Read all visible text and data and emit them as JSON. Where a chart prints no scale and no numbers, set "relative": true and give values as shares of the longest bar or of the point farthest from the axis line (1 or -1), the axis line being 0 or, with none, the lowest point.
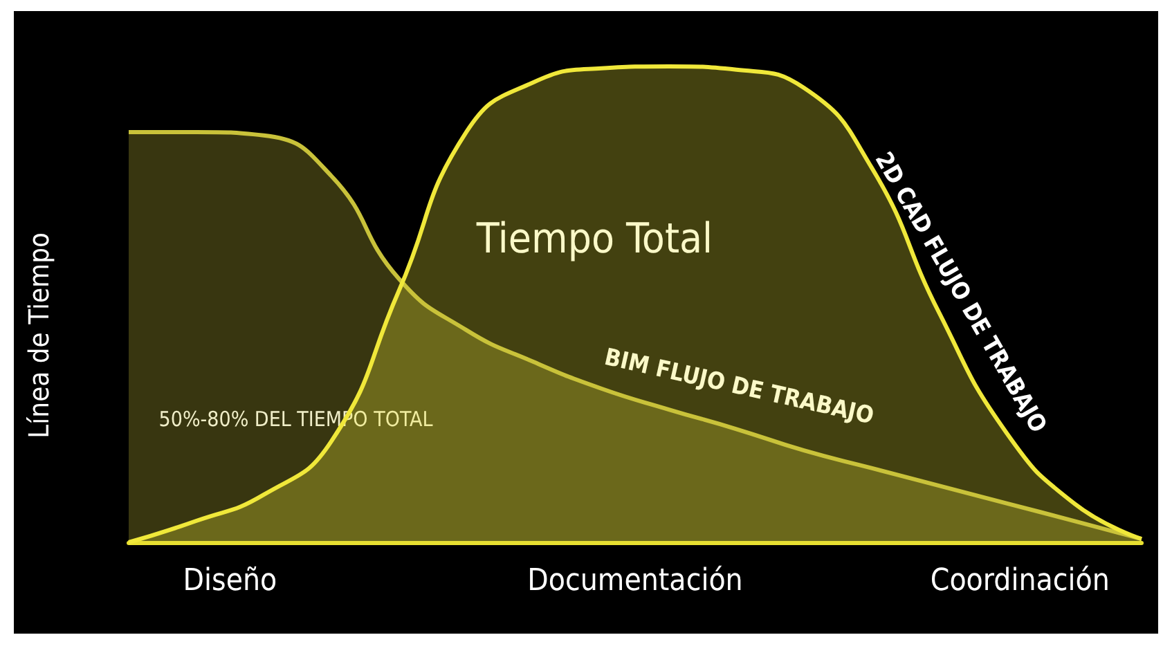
{
  "chart_data": {
    "type": "area",
    "relative": true,
    "ylabel": "Línea de Tiempo",
    "categories": [
      null,
      null,
      null,
      null,
      null,
      null,
      null,
      null,
      null,
      null,
      null,
      null,
      null,
      null,
      null,
      null
    ],
    "series": [
      {
        "name": "BIM FLUJO DE TRABAJO",
        "color": "#c9c23a",
        "values": [
          0.862,
          0.862,
          0.855,
          0.77,
          0.554,
          0.446,
          0.379,
          0.323,
          0.279,
          0.238,
          0.193,
          0.156,
          0.119,
          0.082,
          0.045,
          0.007
        ]
      },
      {
        "name": "2D CAD FLUJO DE TRABAJO",
        "color": "#f0e83a",
        "values": [
          0,
          0.045,
          0.1,
          0.212,
          0.528,
          0.862,
          0.967,
          0.996,
          1,
          0.993,
          0.955,
          0.788,
          0.483,
          0.23,
          0.082,
          0.007
        ]
      }
    ],
    "annotations": [
      "Diseño",
      "Documentación",
      "Coordinación",
      "Tiempo Total",
      "50%-80% DEL TIEMPO TOTAL"
    ],
    "grid": false,
    "marker": "none",
    "line_style": "solid"
  }
}
